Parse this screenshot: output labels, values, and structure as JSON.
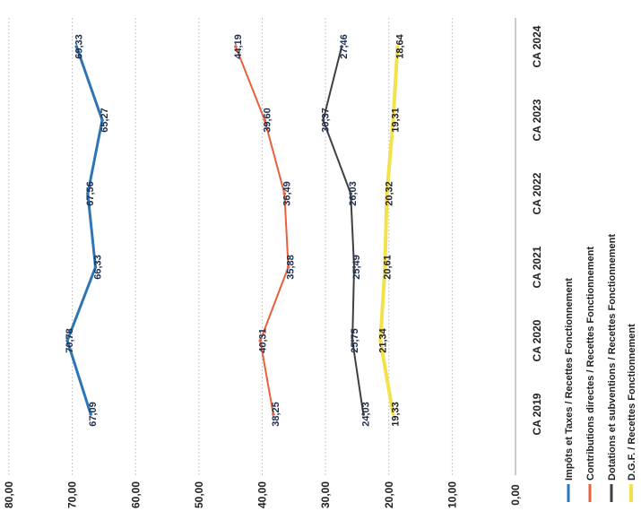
{
  "chart_data": {
    "type": "line",
    "orientation": "rotated-90-clockwise",
    "categories": [
      "CA 2019",
      "CA 2020",
      "CA 2021",
      "CA 2022",
      "CA 2023",
      "CA 2024"
    ],
    "ylim": [
      0,
      80
    ],
    "y_ticks": [
      "0,00",
      "10,00",
      "20,00",
      "30,00",
      "40,00",
      "50,00",
      "60,00",
      "70,00",
      "80,00"
    ],
    "y_tick_values": [
      0,
      10,
      20,
      30,
      40,
      50,
      60,
      70,
      80
    ],
    "grid": true,
    "legend_position": "right",
    "series": [
      {
        "name": "Impôts et Taxes / Recettes Fonctionnement",
        "color": "#2E75B6",
        "values": [
          67.09,
          70.78,
          66.33,
          67.56,
          65.27,
          69.33
        ],
        "labels": [
          "67,09",
          "70,78",
          "66,33",
          "67,56",
          "65,27",
          "69,33"
        ]
      },
      {
        "name": "Contributions directes / Recettes Fonctionnement",
        "color": "#E8603C",
        "values": [
          38.25,
          40.31,
          35.88,
          36.49,
          39.6,
          44.19
        ],
        "labels": [
          "38,25",
          "40,31",
          "35,88",
          "36,49",
          "39,60",
          "44,19"
        ]
      },
      {
        "name": "Dotations et subventions / Recettes Fonctionnement",
        "color": "#404040",
        "values": [
          24.03,
          25.75,
          25.49,
          26.03,
          30.37,
          27.46
        ],
        "labels": [
          "24,03",
          "25,75",
          "25,49",
          "26,03",
          "30,37",
          "27,46"
        ]
      },
      {
        "name": "D.G.F. / Recettes Fonctionnement",
        "color": "#F3E24A",
        "values": [
          19.33,
          21.34,
          20.61,
          20.32,
          19.31,
          18.64
        ],
        "labels": [
          "19,33",
          "21,34",
          "20,61",
          "20,32",
          "19,31",
          "18,64"
        ]
      }
    ]
  }
}
